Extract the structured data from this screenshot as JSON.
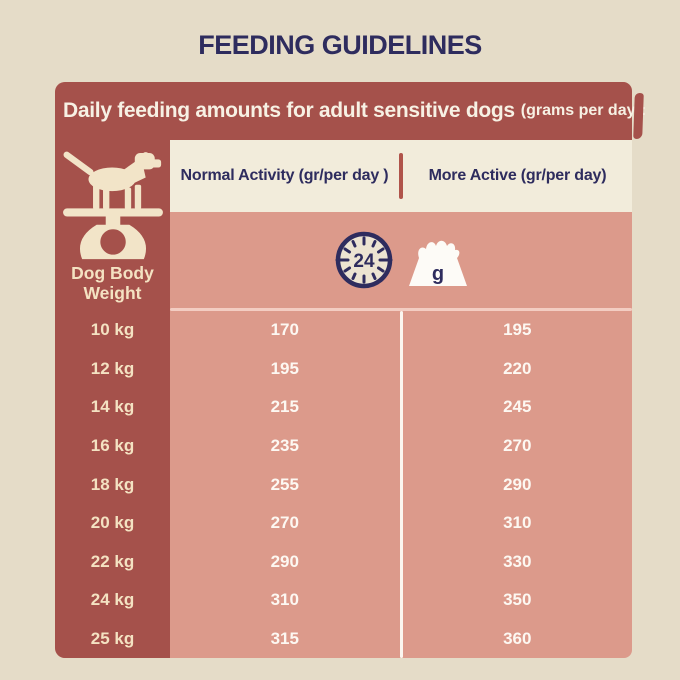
{
  "page_title": "FEEDING GUIDELINES",
  "card": {
    "header_main": "Daily feeding amounts for adult sensitive dogs",
    "header_suffix": "(grams per day):",
    "weight_axis": {
      "line1": "Dog Body",
      "line2": "Weight"
    },
    "column_headers": [
      "Normal Activity (gr/per day )",
      "More Active (gr/per day)"
    ],
    "clock_icon_value": "24",
    "bowl_icon_letter": "g"
  },
  "chart_data": {
    "type": "table",
    "title": "Daily feeding amounts for adult sensitive dogs (grams per day)",
    "categories": [
      "10 kg",
      "12 kg",
      "14 kg",
      "16 kg",
      "18 kg",
      "20 kg",
      "22 kg",
      "24 kg",
      "25 kg"
    ],
    "series": [
      {
        "name": "Normal Activity (gr/per day )",
        "values": [
          170,
          195,
          215,
          235,
          255,
          270,
          290,
          310,
          315
        ]
      },
      {
        "name": "More Active (gr/per day)",
        "values": [
          195,
          220,
          245,
          270,
          290,
          310,
          330,
          350,
          360
        ]
      }
    ],
    "row_axis_label": "Dog Body Weight"
  },
  "colors": {
    "page_background": "#e5dcc8",
    "card_red": "#a5514b",
    "table_pink": "#dc9a8b",
    "band_cream": "#f2ecdb",
    "navy_text": "#2e2c5e",
    "weight_text_cream": "#f4e2c2",
    "value_text_white": "#fdf8f2"
  }
}
